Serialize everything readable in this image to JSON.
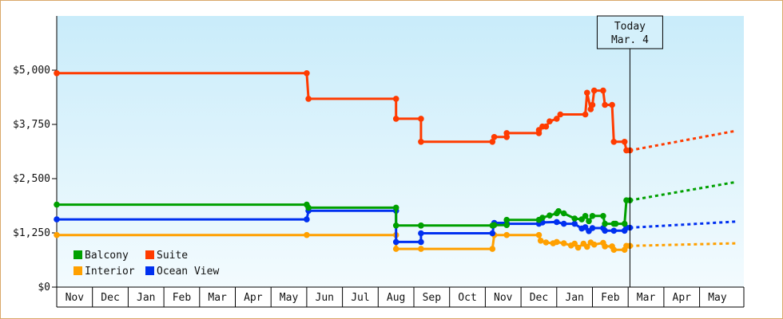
{
  "chart_data": {
    "type": "line",
    "title": "",
    "xlabel": "",
    "ylabel": "",
    "ylim": [
      0,
      6250
    ],
    "y_ticks": [
      {
        "value": 0,
        "label": "$0"
      },
      {
        "value": 1250,
        "label": "$1,250"
      },
      {
        "value": 2500,
        "label": "$2,500"
      },
      {
        "value": 3750,
        "label": "$3,750"
      },
      {
        "value": 5000,
        "label": "$5,000"
      }
    ],
    "months": [
      "Nov",
      "Dec",
      "Jan",
      "Feb",
      "Mar",
      "Apr",
      "May",
      "Jun",
      "Jul",
      "Aug",
      "Sep",
      "Oct",
      "Nov",
      "Dec",
      "Jan",
      "Feb",
      "Mar",
      "Apr",
      "May"
    ],
    "today": {
      "line1": "Today",
      "line2": "Mar. 4",
      "x": 16.05
    },
    "grid": false,
    "legend_placement": "bottom-left",
    "series": [
      {
        "name": "Suite",
        "color": "#ff3b00",
        "points": [
          [
            0,
            4930
          ],
          [
            7,
            4930
          ],
          [
            7.05,
            4340
          ],
          [
            9.5,
            4340
          ],
          [
            9.5,
            3880
          ],
          [
            10.2,
            3880
          ],
          [
            10.2,
            3350
          ],
          [
            12.2,
            3350
          ],
          [
            12.25,
            3460
          ],
          [
            12.6,
            3460
          ],
          [
            12.6,
            3550
          ],
          [
            13.5,
            3550
          ],
          [
            13.5,
            3620
          ],
          [
            13.6,
            3700
          ],
          [
            13.7,
            3700
          ],
          [
            13.8,
            3820
          ],
          [
            14,
            3880
          ],
          [
            14.1,
            3980
          ],
          [
            14.8,
            3980
          ],
          [
            14.85,
            4480
          ],
          [
            14.95,
            4100
          ],
          [
            15,
            4200
          ],
          [
            15.05,
            4530
          ],
          [
            15.3,
            4530
          ],
          [
            15.35,
            4200
          ],
          [
            15.55,
            4200
          ],
          [
            15.6,
            3350
          ],
          [
            15.9,
            3350
          ],
          [
            15.95,
            3150
          ],
          [
            16.05,
            3150
          ]
        ],
        "forecast": [
          [
            16.05,
            3150
          ],
          [
            19,
            3600
          ]
        ]
      },
      {
        "name": "Balcony",
        "color": "#00a000",
        "points": [
          [
            0,
            1900
          ],
          [
            7,
            1900
          ],
          [
            7.05,
            1830
          ],
          [
            9.5,
            1830
          ],
          [
            9.5,
            1420
          ],
          [
            10.2,
            1420
          ],
          [
            10.2,
            1420
          ],
          [
            12.2,
            1420
          ],
          [
            12.25,
            1430
          ],
          [
            12.6,
            1430
          ],
          [
            12.6,
            1550
          ],
          [
            13.5,
            1550
          ],
          [
            13.6,
            1600
          ],
          [
            13.8,
            1650
          ],
          [
            14,
            1700
          ],
          [
            14.05,
            1750
          ],
          [
            14.2,
            1700
          ],
          [
            14.5,
            1580
          ],
          [
            14.7,
            1560
          ],
          [
            14.8,
            1640
          ],
          [
            14.9,
            1520
          ],
          [
            15,
            1640
          ],
          [
            15.3,
            1640
          ],
          [
            15.35,
            1460
          ],
          [
            15.6,
            1460
          ],
          [
            15.65,
            1460
          ],
          [
            15.9,
            1460
          ],
          [
            15.95,
            2000
          ],
          [
            16.05,
            2000
          ]
        ],
        "forecast": [
          [
            16.05,
            2000
          ],
          [
            19,
            2420
          ]
        ]
      },
      {
        "name": "Ocean View",
        "color": "#0030f0",
        "points": [
          [
            0,
            1560
          ],
          [
            7,
            1560
          ],
          [
            7.05,
            1760
          ],
          [
            9.5,
            1760
          ],
          [
            9.5,
            1040
          ],
          [
            10.2,
            1040
          ],
          [
            10.2,
            1240
          ],
          [
            12.2,
            1240
          ],
          [
            12.25,
            1480
          ],
          [
            12.6,
            1480
          ],
          [
            12.6,
            1460
          ],
          [
            13.5,
            1460
          ],
          [
            13.6,
            1490
          ],
          [
            14,
            1500
          ],
          [
            14.2,
            1460
          ],
          [
            14.5,
            1460
          ],
          [
            14.7,
            1350
          ],
          [
            14.8,
            1380
          ],
          [
            14.9,
            1290
          ],
          [
            15,
            1360
          ],
          [
            15.3,
            1360
          ],
          [
            15.35,
            1300
          ],
          [
            15.6,
            1300
          ],
          [
            15.9,
            1300
          ],
          [
            15.95,
            1370
          ],
          [
            16.05,
            1370
          ]
        ],
        "forecast": [
          [
            16.05,
            1370
          ],
          [
            19,
            1510
          ]
        ]
      },
      {
        "name": "Interior",
        "color": "#ffa000",
        "points": [
          [
            0,
            1200
          ],
          [
            7,
            1200
          ],
          [
            9.5,
            1200
          ],
          [
            9.5,
            880
          ],
          [
            10.2,
            880
          ],
          [
            12.2,
            880
          ],
          [
            12.25,
            1200
          ],
          [
            12.6,
            1200
          ],
          [
            13.5,
            1200
          ],
          [
            13.55,
            1070
          ],
          [
            13.7,
            1030
          ],
          [
            13.9,
            1010
          ],
          [
            14,
            1040
          ],
          [
            14.2,
            1010
          ],
          [
            14.4,
            960
          ],
          [
            14.5,
            1000
          ],
          [
            14.6,
            910
          ],
          [
            14.75,
            1000
          ],
          [
            14.85,
            930
          ],
          [
            14.95,
            1030
          ],
          [
            15.05,
            980
          ],
          [
            15.3,
            1020
          ],
          [
            15.35,
            940
          ],
          [
            15.55,
            940
          ],
          [
            15.6,
            860
          ],
          [
            15.9,
            860
          ],
          [
            15.95,
            950
          ],
          [
            16.05,
            950
          ]
        ],
        "forecast": [
          [
            16.05,
            950
          ],
          [
            19,
            1010
          ]
        ]
      }
    ]
  },
  "legend": {
    "items": [
      {
        "label": "Balcony",
        "color": "#00a000"
      },
      {
        "label": "Suite",
        "color": "#ff3b00"
      },
      {
        "label": "Interior",
        "color": "#ffa000"
      },
      {
        "label": "Ocean View",
        "color": "#0030f0"
      }
    ]
  }
}
